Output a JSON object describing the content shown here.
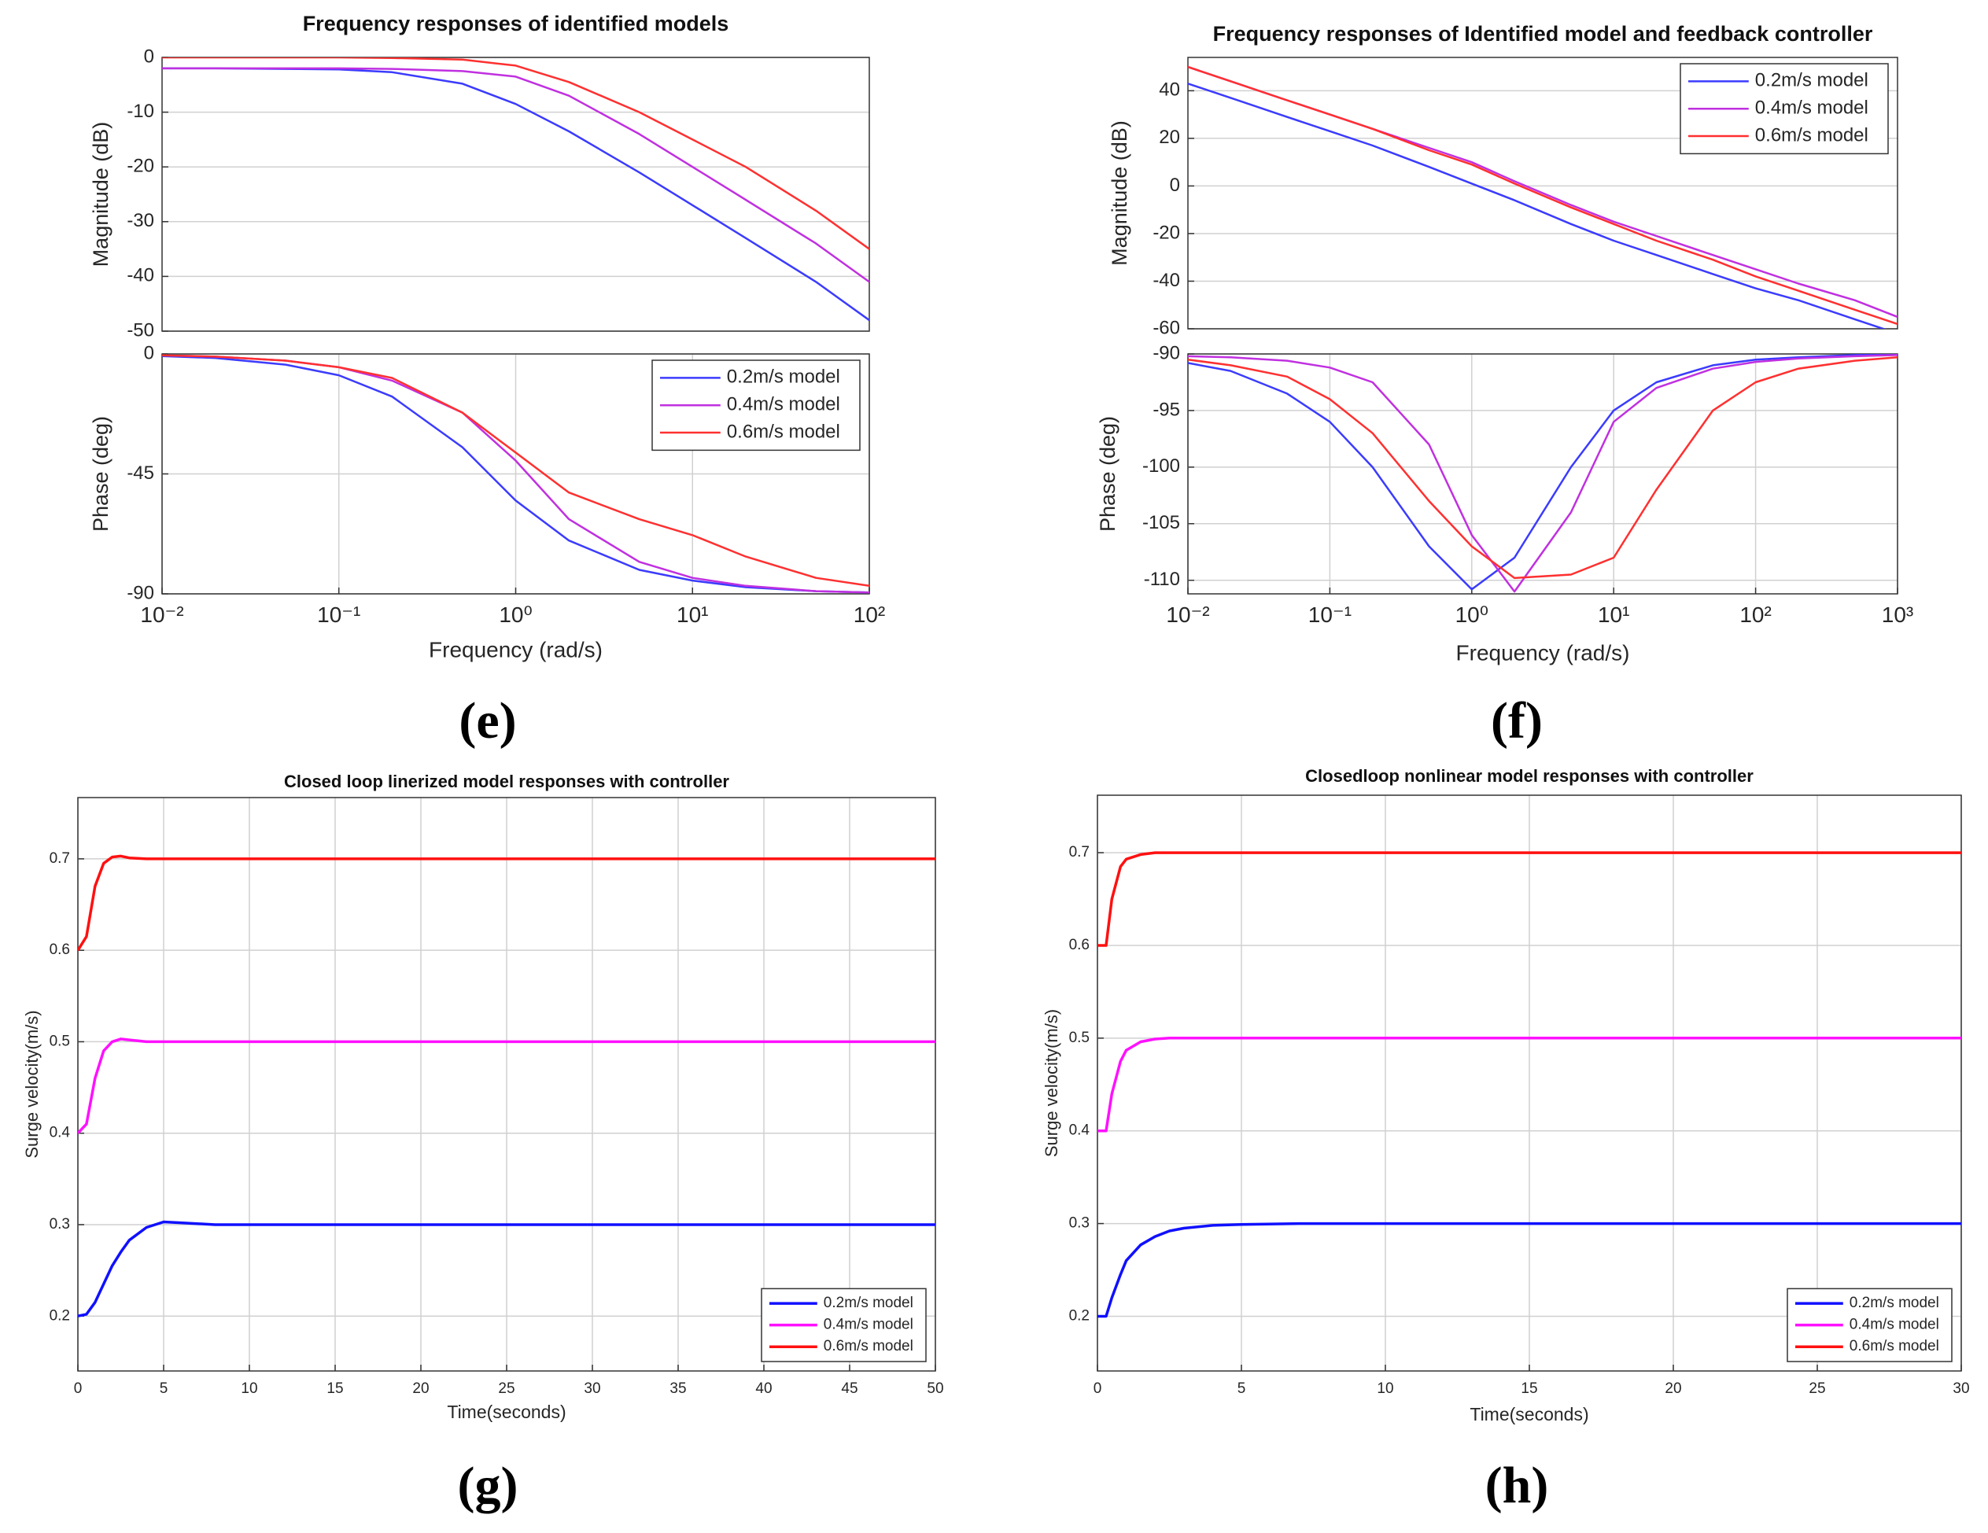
{
  "chart_data": [
    {
      "type": "line",
      "title": "Frequency responses of identified models",
      "xlog": true,
      "grid": true,
      "x": [
        0.01,
        0.02,
        0.05,
        0.1,
        0.2,
        0.5,
        1,
        2,
        5,
        10,
        20,
        50,
        100
      ],
      "xlim": [
        0.01,
        100
      ],
      "ylim": [
        -50,
        0
      ],
      "yticks": [
        -50,
        -40,
        -30,
        -20,
        -10,
        0
      ],
      "ylabel": "Magnitude (dB)",
      "series": [
        {
          "color": "#3b3bff",
          "values": [
            -2,
            -2,
            -2.1,
            -2.2,
            -2.7,
            -4.8,
            -8.5,
            -13.5,
            -21,
            -27,
            -33,
            -41,
            -48
          ]
        },
        {
          "color": "#c030e0",
          "values": [
            -2,
            -2,
            -2,
            -2,
            -2.1,
            -2.5,
            -3.5,
            -7,
            -14,
            -20,
            -26,
            -34,
            -41
          ]
        },
        {
          "color": "#ff3030",
          "values": [
            0,
            0,
            0,
            0,
            -0.1,
            -0.4,
            -1.5,
            -4.5,
            -10,
            -15,
            -20,
            -28,
            -35
          ]
        }
      ]
    },
    {
      "type": "line",
      "xlog": true,
      "grid": true,
      "legend": "upper right",
      "panel_label": "(e)",
      "x": [
        0.01,
        0.02,
        0.05,
        0.1,
        0.2,
        0.5,
        1,
        2,
        5,
        10,
        20,
        50,
        100
      ],
      "xlim": [
        0.01,
        100
      ],
      "xticks": [
        {
          "value": 0.01,
          "label": "10⁻²"
        },
        {
          "value": 0.1,
          "label": "10⁻¹"
        },
        {
          "value": 1,
          "label": "10⁰"
        },
        {
          "value": 10,
          "label": "10¹"
        },
        {
          "value": 100,
          "label": "10²"
        }
      ],
      "ylim": [
        -90,
        0
      ],
      "yticks": [
        -90,
        -45,
        0
      ],
      "ylabel": "Phase (deg)",
      "xlabel": "Frequency  (rad/s)",
      "series": [
        {
          "name": "0.2m/s model",
          "color": "#3b3bff",
          "values": [
            -0.8,
            -1.5,
            -4,
            -8,
            -16,
            -35,
            -55,
            -70,
            -81,
            -85,
            -87.5,
            -89,
            -89.5
          ]
        },
        {
          "name": "0.4m/s model",
          "color": "#c030e0",
          "values": [
            -0.5,
            -1,
            -2.5,
            -5,
            -10,
            -22,
            -40,
            -62,
            -78,
            -84,
            -87,
            -89,
            -89.5
          ]
        },
        {
          "name": "0.6m/s model",
          "color": "#ff3030",
          "values": [
            -0.5,
            -1,
            -2.5,
            -5,
            -9,
            -22,
            -37,
            -52,
            -62,
            -68,
            -76,
            -84,
            -87
          ]
        }
      ]
    },
    {
      "type": "line",
      "title": "Frequency responses of Identified model and feedback controller",
      "xlog": true,
      "grid": true,
      "legend": "upper right",
      "x": [
        0.01,
        0.02,
        0.05,
        0.1,
        0.2,
        0.5,
        1,
        2,
        5,
        10,
        20,
        50,
        100,
        200,
        500,
        1000
      ],
      "xlim": [
        0.01,
        1000
      ],
      "ylim": [
        -60,
        54
      ],
      "yticks": [
        -60,
        -40,
        -20,
        0,
        20,
        40
      ],
      "ylabel": "Magnitude (dB)",
      "series": [
        {
          "name": "0.2m/s model",
          "color": "#3b3bff",
          "values": [
            43,
            37,
            29,
            23,
            17,
            8,
            1,
            -6,
            -16,
            -23,
            -29,
            -37,
            -43,
            -48,
            -56,
            -62
          ]
        },
        {
          "name": "0.4m/s model",
          "color": "#c030e0",
          "values": [
            50,
            44,
            36,
            30,
            24,
            16,
            10,
            2,
            -8,
            -15,
            -21,
            -29,
            -35,
            -41,
            -48,
            -55
          ]
        },
        {
          "name": "0.6m/s model",
          "color": "#ff3030",
          "values": [
            50,
            44,
            36,
            30,
            24,
            15,
            9,
            1,
            -9,
            -16,
            -23,
            -31,
            -38,
            -44,
            -52,
            -58
          ]
        }
      ]
    },
    {
      "type": "line",
      "xlog": true,
      "grid": true,
      "panel_label": "(f)",
      "x": [
        0.01,
        0.02,
        0.05,
        0.1,
        0.2,
        0.5,
        1,
        2,
        5,
        10,
        20,
        50,
        100,
        200,
        500,
        1000
      ],
      "xlim": [
        0.01,
        1000
      ],
      "xticks": [
        {
          "value": 0.01,
          "label": "10⁻²"
        },
        {
          "value": 0.1,
          "label": "10⁻¹"
        },
        {
          "value": 1,
          "label": "10⁰"
        },
        {
          "value": 10,
          "label": "10¹"
        },
        {
          "value": 100,
          "label": "10²"
        },
        {
          "value": 1000,
          "label": "10³"
        }
      ],
      "ylim": [
        -111.2,
        -90
      ],
      "yticks": [
        -110,
        -105,
        -100,
        -95,
        -90
      ],
      "ylabel": "Phase (deg)",
      "xlabel": "Frequency  (rad/s)",
      "series": [
        {
          "color": "#3b3bff",
          "values": [
            -90.8,
            -91.5,
            -93.5,
            -96,
            -100,
            -107,
            -110.8,
            -108,
            -100,
            -95,
            -92.5,
            -91,
            -90.5,
            -90.3,
            -90.1,
            -90
          ]
        },
        {
          "color": "#c030e0",
          "values": [
            -90.2,
            -90.3,
            -90.6,
            -91.2,
            -92.5,
            -98,
            -106,
            -111,
            -104,
            -96,
            -93,
            -91.3,
            -90.7,
            -90.4,
            -90.2,
            -90.1
          ]
        },
        {
          "color": "#ff3030",
          "values": [
            -90.5,
            -91,
            -92,
            -94,
            -97,
            -103,
            -107,
            -109.8,
            -109.5,
            -108,
            -102,
            -95,
            -92.5,
            -91.3,
            -90.6,
            -90.3
          ]
        }
      ]
    },
    {
      "type": "line",
      "title": "Closed loop linerized model responses with controller",
      "grid": true,
      "legend": "lower right",
      "panel_label": "(g)",
      "x": [
        0,
        0.5,
        1,
        1.5,
        2,
        2.5,
        3,
        4,
        5,
        6,
        8,
        10,
        20,
        30,
        40,
        50
      ],
      "xlim": [
        0,
        50
      ],
      "xticks": [
        0,
        5,
        10,
        15,
        20,
        25,
        30,
        35,
        40,
        45,
        50
      ],
      "ylim": [
        0.14,
        0.767
      ],
      "yticks": [
        0.2,
        0.3,
        0.4,
        0.5,
        0.6,
        0.7
      ],
      "ylabel": "Surge velocity(m/s)",
      "xlabel": "Time(seconds)",
      "series": [
        {
          "name": "0.2m/s model",
          "color": "#1010ff",
          "values": [
            0.2,
            0.202,
            0.215,
            0.235,
            0.255,
            0.27,
            0.283,
            0.297,
            0.303,
            0.302,
            0.3,
            0.3,
            0.3,
            0.3,
            0.3,
            0.3
          ]
        },
        {
          "name": "0.4m/s model",
          "color": "#ff10ff",
          "values": [
            0.4,
            0.41,
            0.46,
            0.49,
            0.5,
            0.503,
            0.502,
            0.5,
            0.5,
            0.5,
            0.5,
            0.5,
            0.5,
            0.5,
            0.5,
            0.5
          ]
        },
        {
          "name": "0.6m/s model",
          "color": "#ff1010",
          "values": [
            0.6,
            0.615,
            0.67,
            0.695,
            0.702,
            0.703,
            0.701,
            0.7,
            0.7,
            0.7,
            0.7,
            0.7,
            0.7,
            0.7,
            0.7,
            0.7
          ]
        }
      ]
    },
    {
      "type": "line",
      "title": "Closedloop nonlinear model responses with controller",
      "grid": true,
      "legend": "lower right",
      "panel_label": "(h)",
      "x": [
        0,
        0.3,
        0.5,
        0.8,
        1,
        1.5,
        2,
        2.5,
        3,
        4,
        5,
        7,
        10,
        15,
        20,
        25,
        30
      ],
      "xlim": [
        0,
        30
      ],
      "xticks": [
        0,
        5,
        10,
        15,
        20,
        25,
        30
      ],
      "ylim": [
        0.141,
        0.762
      ],
      "yticks": [
        0.2,
        0.3,
        0.4,
        0.5,
        0.6,
        0.7
      ],
      "ylabel": "Surge velocity(m/s)",
      "xlabel": "Time(seconds)",
      "series": [
        {
          "name": "0.2m/s model",
          "color": "#1010ff",
          "values": [
            0.2,
            0.2,
            0.22,
            0.245,
            0.26,
            0.277,
            0.286,
            0.292,
            0.295,
            0.298,
            0.299,
            0.3,
            0.3,
            0.3,
            0.3,
            0.3,
            0.3
          ]
        },
        {
          "name": "0.4m/s model",
          "color": "#ff10ff",
          "values": [
            0.4,
            0.4,
            0.44,
            0.475,
            0.487,
            0.496,
            0.499,
            0.5,
            0.5,
            0.5,
            0.5,
            0.5,
            0.5,
            0.5,
            0.5,
            0.5,
            0.5
          ]
        },
        {
          "name": "0.6m/s model",
          "color": "#ff1010",
          "values": [
            0.6,
            0.6,
            0.65,
            0.685,
            0.693,
            0.698,
            0.7,
            0.7,
            0.7,
            0.7,
            0.7,
            0.7,
            0.7,
            0.7,
            0.7,
            0.7,
            0.7
          ]
        }
      ]
    }
  ]
}
